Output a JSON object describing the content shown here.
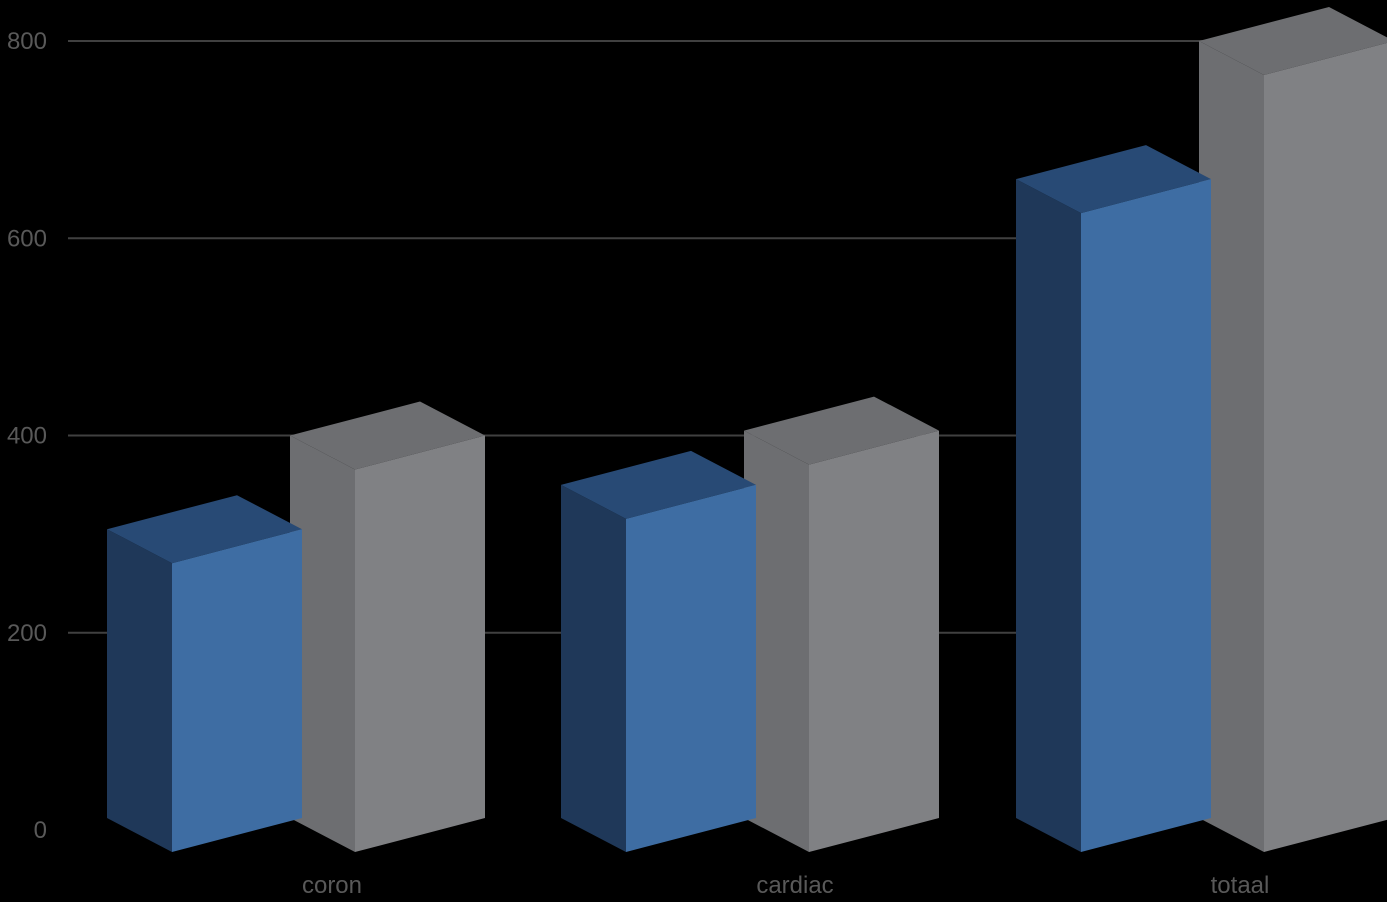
{
  "chart_data": {
    "type": "bar",
    "title": "",
    "xlabel": "",
    "ylabel": "",
    "categories": [
      "coron",
      "cardiac",
      "totaal"
    ],
    "series": [
      {
        "values": [
          305,
          350,
          660
        ],
        "color": "#3E6DA3",
        "side_color": "#1F3859",
        "top_color": "#284A75"
      },
      {
        "values": [
          400,
          405,
          800
        ],
        "color": "#808184",
        "side_color": "#6D6E71",
        "top_color": "#6D6E71"
      }
    ],
    "y_ticks": [
      "0",
      "200",
      "400",
      "600",
      "800"
    ],
    "ylim": [
      0,
      800
    ],
    "grid": true,
    "legend": "none",
    "style": "3d-column",
    "grid_color": "#404040",
    "tick_label_color": "#595959"
  }
}
